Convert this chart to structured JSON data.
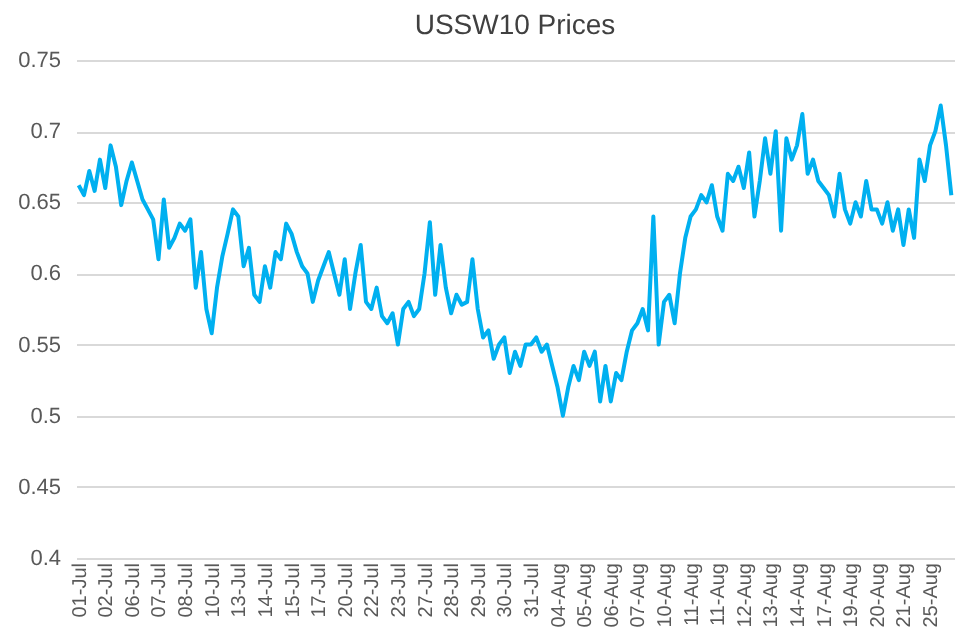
{
  "chart_data": {
    "type": "line",
    "title": "USSW10 Prices",
    "categories": [
      "01-Jul",
      null,
      null,
      null,
      null,
      "02-Jul",
      null,
      null,
      null,
      null,
      "06-Jul",
      null,
      null,
      null,
      null,
      "07-Jul",
      null,
      null,
      null,
      null,
      "08-Jul",
      null,
      null,
      null,
      null,
      "10-Jul",
      null,
      null,
      null,
      null,
      "13-Jul",
      null,
      null,
      null,
      null,
      "14-Jul",
      null,
      null,
      null,
      null,
      "15-Jul",
      null,
      null,
      null,
      null,
      "17-Jul",
      null,
      null,
      null,
      null,
      "20-Jul",
      null,
      null,
      null,
      null,
      "22-Jul",
      null,
      null,
      null,
      null,
      "23-Jul",
      null,
      null,
      null,
      null,
      "27-Jul",
      null,
      null,
      null,
      null,
      "28-Jul",
      null,
      null,
      null,
      null,
      "29-Jul",
      null,
      null,
      null,
      null,
      "30-Jul",
      null,
      null,
      null,
      null,
      "31-Jul",
      null,
      null,
      null,
      null,
      "04-Aug",
      null,
      null,
      null,
      null,
      "05-Aug",
      null,
      null,
      null,
      null,
      "06-Aug",
      null,
      null,
      null,
      null,
      "07-Aug",
      null,
      null,
      null,
      null,
      "10-Aug",
      null,
      null,
      null,
      null,
      "11-Aug",
      null,
      null,
      null,
      null,
      "11-Aug",
      null,
      null,
      null,
      null,
      "12-Aug",
      null,
      null,
      null,
      null,
      "13-Aug",
      null,
      null,
      null,
      null,
      "14-Aug",
      null,
      null,
      null,
      null,
      "17-Aug",
      null,
      null,
      null,
      null,
      "19-Aug",
      null,
      null,
      null,
      null,
      "20-Aug",
      null,
      null,
      null,
      null,
      "21-Aug",
      null,
      null,
      null,
      null,
      "25-Aug",
      null,
      null,
      null,
      null
    ],
    "series": [
      {
        "color": "#00b0f0",
        "values": [
          0.662,
          0.655,
          0.672,
          0.658,
          0.68,
          0.66,
          0.69,
          0.675,
          0.648,
          0.665,
          0.678,
          0.665,
          0.652,
          0.645,
          0.638,
          0.61,
          0.652,
          0.618,
          0.625,
          0.635,
          0.63,
          0.638,
          0.59,
          0.615,
          0.575,
          0.558,
          0.59,
          0.612,
          0.628,
          0.645,
          0.64,
          0.605,
          0.618,
          0.585,
          0.58,
          0.605,
          0.59,
          0.615,
          0.61,
          0.635,
          0.628,
          0.615,
          0.605,
          0.6,
          0.58,
          0.595,
          0.605,
          0.615,
          0.6,
          0.585,
          0.61,
          0.575,
          0.6,
          0.62,
          0.58,
          0.575,
          0.59,
          0.57,
          0.565,
          0.572,
          0.55,
          0.575,
          0.58,
          0.57,
          0.575,
          0.6,
          0.636,
          0.585,
          0.62,
          0.59,
          0.572,
          0.585,
          0.578,
          0.58,
          0.61,
          0.575,
          0.555,
          0.56,
          0.54,
          0.55,
          0.555,
          0.53,
          0.545,
          0.535,
          0.55,
          0.55,
          0.555,
          0.545,
          0.55,
          0.535,
          0.52,
          0.5,
          0.52,
          0.535,
          0.525,
          0.545,
          0.535,
          0.545,
          0.51,
          0.535,
          0.51,
          0.53,
          0.525,
          0.545,
          0.56,
          0.565,
          0.575,
          0.56,
          0.64,
          0.55,
          0.58,
          0.585,
          0.565,
          0.6,
          0.625,
          0.64,
          0.645,
          0.655,
          0.65,
          0.662,
          0.64,
          0.63,
          0.67,
          0.665,
          0.675,
          0.66,
          0.685,
          0.64,
          0.665,
          0.695,
          0.67,
          0.7,
          0.63,
          0.695,
          0.68,
          0.69,
          0.712,
          0.67,
          0.68,
          0.665,
          0.66,
          0.655,
          0.64,
          0.67,
          0.645,
          0.635,
          0.65,
          0.64,
          0.665,
          0.645,
          0.645,
          0.635,
          0.65,
          0.63,
          0.645,
          0.62,
          0.645,
          0.625,
          0.68,
          0.665,
          0.69,
          0.7,
          0.718,
          0.69,
          0.655
        ]
      }
    ],
    "ylim": [
      0.4,
      0.75
    ],
    "yticks": [
      0.4,
      0.45,
      0.5,
      0.55,
      0.6,
      0.65,
      0.7,
      0.75
    ],
    "grid": "y"
  }
}
